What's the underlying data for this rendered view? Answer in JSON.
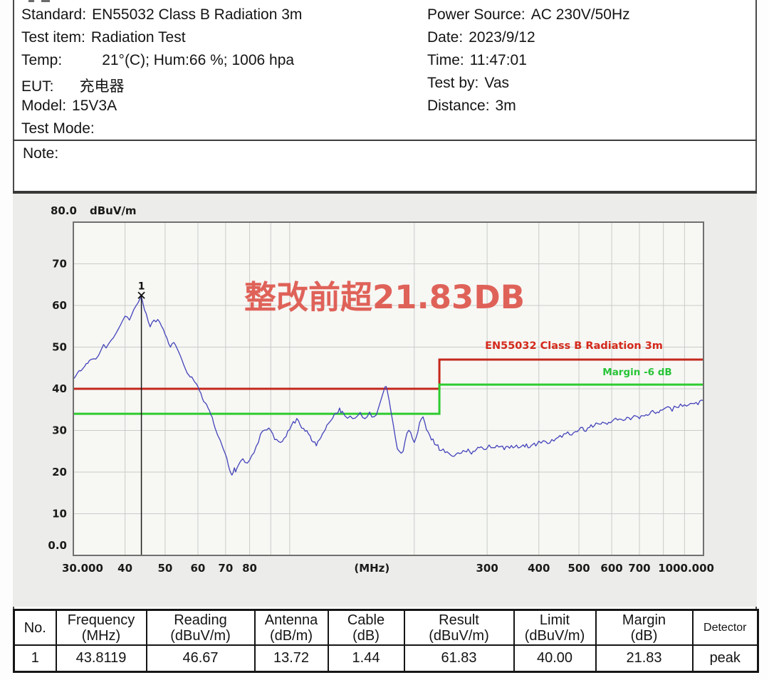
{
  "header": {
    "left": [
      {
        "label": "Standard:",
        "value": "EN55032 Class B Radiation 3m"
      },
      {
        "label": "Test item:",
        "value": "Radiation Test"
      },
      {
        "label": "Temp:",
        "value": "21°(C); Hum:66 %; 1006 hpa"
      },
      {
        "label": "EUT:",
        "value": "充电器"
      },
      {
        "label": "Model:",
        "value": "15V3A"
      },
      {
        "label": "Test Mode:",
        "value": ""
      }
    ],
    "right": [
      {
        "label": "Power Source:",
        "value": "AC 230V/50Hz"
      },
      {
        "label": "Date:",
        "value": "2023/9/12"
      },
      {
        "label": "Time:",
        "value": "11:47:01"
      },
      {
        "label": "Test by:",
        "value": "Vas"
      },
      {
        "label": "Distance:",
        "value": "3m"
      }
    ]
  },
  "note": {
    "label": "Note:"
  },
  "chart_data": {
    "type": "line",
    "x_axis": {
      "scale": "log",
      "min": 30,
      "max": 1000,
      "tick_labels": [
        {
          "f": 30,
          "label": "30.000"
        },
        {
          "f": 40,
          "label": "40"
        },
        {
          "f": 50,
          "label": "50"
        },
        {
          "f": 60,
          "label": "60"
        },
        {
          "f": 70,
          "label": "70"
        },
        {
          "f": 80,
          "label": "80"
        },
        {
          "f": 158,
          "label": "(MHz)",
          "unit": true
        },
        {
          "f": 300,
          "label": "300"
        },
        {
          "f": 400,
          "label": "400"
        },
        {
          "f": 500,
          "label": "500"
        },
        {
          "f": 600,
          "label": "600"
        },
        {
          "f": 700,
          "label": "700"
        },
        {
          "f": 1000,
          "label": "1000.000"
        }
      ],
      "grid_freqs": [
        40,
        50,
        60,
        70,
        80,
        90,
        100,
        200,
        300,
        400,
        500,
        600,
        700,
        800,
        900
      ]
    },
    "y_axis": {
      "min": 0,
      "max": 80,
      "unit_label": "dBuV/m",
      "top_label": "80.0",
      "bottom_label": "0.0",
      "ticks": [
        70,
        60,
        50,
        40,
        30,
        20,
        10
      ]
    },
    "annotation": {
      "text": "整改前超21.83DB",
      "color": "#de564c"
    },
    "limit_line": {
      "label": "EN55032 Class B Radiation 3m",
      "color": "#c3281c",
      "label_color": "#d5291c",
      "segments": [
        {
          "from": 30,
          "to": 230,
          "level": 40
        },
        {
          "from": 230,
          "to": 1000,
          "level": 47
        }
      ]
    },
    "margin_line": {
      "label": "Margin -6 dB",
      "color": "#2ecc2e",
      "label_color": "#27c437",
      "segments": [
        {
          "from": 30,
          "to": 230,
          "level": 34
        },
        {
          "from": 230,
          "to": 1000,
          "level": 41
        }
      ]
    },
    "marker": {
      "no": "1",
      "freq_mhz": 43.8119,
      "value_dbuvm": 61.83
    },
    "trace": {
      "name": "measurement-trace",
      "color": "#4343bb",
      "points": [
        [
          30,
          42.3
        ],
        [
          30.5,
          43.3
        ],
        [
          31,
          44.1
        ],
        [
          31.5,
          44.7
        ],
        [
          32,
          45.4
        ],
        [
          32.5,
          46.3
        ],
        [
          33,
          47.1
        ],
        [
          33.5,
          47.4
        ],
        [
          34,
          47.2
        ],
        [
          34.5,
          48.1
        ],
        [
          35,
          49.2
        ],
        [
          35.5,
          50.4
        ],
        [
          36,
          50.0
        ],
        [
          36.5,
          50.7
        ],
        [
          37,
          51.7
        ],
        [
          37.5,
          52.5
        ],
        [
          38,
          53.4
        ],
        [
          38.5,
          54.3
        ],
        [
          39,
          55.1
        ],
        [
          39.5,
          56.3
        ],
        [
          40,
          57.4
        ],
        [
          40.5,
          57.0
        ],
        [
          41,
          56.7
        ],
        [
          41.5,
          57.7
        ],
        [
          42,
          58.8
        ],
        [
          42.5,
          59.7
        ],
        [
          43,
          60.7
        ],
        [
          43.4,
          61.3
        ],
        [
          43.8,
          62.0
        ],
        [
          44.2,
          60.7
        ],
        [
          44.6,
          59.1
        ],
        [
          45,
          57.8
        ],
        [
          45.5,
          56.2
        ],
        [
          46,
          54.9
        ],
        [
          46.5,
          55.7
        ],
        [
          47,
          56.4
        ],
        [
          47.5,
          56.0
        ],
        [
          48,
          56.7
        ],
        [
          48.5,
          55.9
        ],
        [
          49,
          54.9
        ],
        [
          49.5,
          54.1
        ],
        [
          50,
          53.3
        ],
        [
          50.5,
          52.1
        ],
        [
          51,
          50.9
        ],
        [
          51.5,
          50.3
        ],
        [
          52,
          50.7
        ],
        [
          52.5,
          51.0
        ],
        [
          53,
          50.4
        ],
        [
          53.5,
          49.6
        ],
        [
          54,
          48.7
        ],
        [
          54.5,
          47.6
        ],
        [
          55,
          46.6
        ],
        [
          55.5,
          45.7
        ],
        [
          56,
          44.9
        ],
        [
          56.5,
          44.0
        ],
        [
          57,
          43.3
        ],
        [
          57.5,
          42.9
        ],
        [
          58,
          43.0
        ],
        [
          58.5,
          42.1
        ],
        [
          59,
          41.6
        ],
        [
          59.5,
          41.1
        ],
        [
          60,
          40.6
        ],
        [
          60.5,
          39.8
        ],
        [
          61,
          38.8
        ],
        [
          62,
          37.1
        ],
        [
          63,
          35.9
        ],
        [
          64,
          34.7
        ],
        [
          64.5,
          33.9
        ],
        [
          65,
          33.1
        ],
        [
          65.5,
          31.9
        ],
        [
          66,
          30.6
        ],
        [
          67,
          28.9
        ],
        [
          68,
          27.3
        ],
        [
          69,
          25.7
        ],
        [
          70,
          24.3
        ],
        [
          70.5,
          23.1
        ],
        [
          71,
          21.9
        ],
        [
          71.5,
          20.7
        ],
        [
          72,
          19.7
        ],
        [
          72.5,
          19.1
        ],
        [
          73,
          19.9
        ],
        [
          73.5,
          20.9
        ],
        [
          74,
          20.3
        ],
        [
          74.5,
          21.1
        ],
        [
          75,
          21.7
        ],
        [
          76,
          22.7
        ],
        [
          77,
          23.4
        ],
        [
          77.5,
          22.9
        ],
        [
          78,
          22.3
        ],
        [
          79,
          21.9
        ],
        [
          80,
          22.9
        ],
        [
          81,
          23.9
        ],
        [
          82,
          24.7
        ],
        [
          83,
          25.9
        ],
        [
          84,
          27.3
        ],
        [
          85,
          28.7
        ],
        [
          86,
          29.9
        ],
        [
          87,
          30.4
        ],
        [
          88,
          29.7
        ],
        [
          89,
          30.5
        ],
        [
          90,
          29.9
        ],
        [
          91,
          28.9
        ],
        [
          92,
          28.1
        ],
        [
          93,
          27.5
        ],
        [
          95,
          26.9
        ],
        [
          97,
          28.3
        ],
        [
          100,
          30.1
        ],
        [
          102,
          31.7
        ],
        [
          104,
          32.7
        ],
        [
          106,
          31.7
        ],
        [
          108,
          30.3
        ],
        [
          110,
          29.5
        ],
        [
          112,
          28.5
        ],
        [
          114,
          27.3
        ],
        [
          116,
          26.7
        ],
        [
          118,
          27.7
        ],
        [
          120,
          28.9
        ],
        [
          122,
          30.3
        ],
        [
          124,
          31.7
        ],
        [
          126,
          32.9
        ],
        [
          128,
          33.7
        ],
        [
          130,
          34.5
        ],
        [
          132,
          35.0
        ],
        [
          134,
          34.3
        ],
        [
          136,
          33.5
        ],
        [
          138,
          32.9
        ],
        [
          140,
          33.5
        ],
        [
          142,
          33.1
        ],
        [
          144,
          32.7
        ],
        [
          146,
          33.3
        ],
        [
          148,
          33.9
        ],
        [
          150,
          33.5
        ],
        [
          152,
          33.1
        ],
        [
          154,
          33.7
        ],
        [
          156,
          34.1
        ],
        [
          158,
          33.6
        ],
        [
          160,
          33.1
        ],
        [
          162,
          33.9
        ],
        [
          164,
          35.1
        ],
        [
          166,
          36.7
        ],
        [
          168,
          38.5
        ],
        [
          170,
          40.3
        ],
        [
          171,
          40.6
        ],
        [
          172,
          39.5
        ],
        [
          174,
          36.9
        ],
        [
          176,
          33.9
        ],
        [
          178,
          30.9
        ],
        [
          180,
          28.1
        ],
        [
          182,
          26.1
        ],
        [
          184,
          24.7
        ],
        [
          186,
          24.1
        ],
        [
          188,
          25.3
        ],
        [
          190,
          27.1
        ],
        [
          192,
          28.9
        ],
        [
          194,
          30.3
        ],
        [
          196,
          29.5
        ],
        [
          198,
          28.3
        ],
        [
          200,
          27.5
        ],
        [
          202,
          28.7
        ],
        [
          204,
          30.1
        ],
        [
          206,
          31.5
        ],
        [
          208,
          32.5
        ],
        [
          210,
          32.9
        ],
        [
          212,
          31.9
        ],
        [
          214,
          30.5
        ],
        [
          216,
          29.3
        ],
        [
          218,
          28.5
        ],
        [
          220,
          28.1
        ],
        [
          222,
          27.7
        ],
        [
          224,
          27.1
        ],
        [
          226,
          26.5
        ],
        [
          228,
          26.1
        ],
        [
          230,
          25.7
        ],
        [
          235,
          25.1
        ],
        [
          240,
          24.5
        ],
        [
          245,
          24.0
        ],
        [
          250,
          23.7
        ],
        [
          255,
          24.3
        ],
        [
          260,
          24.9
        ],
        [
          265,
          25.4
        ],
        [
          270,
          25.1
        ],
        [
          275,
          24.7
        ],
        [
          280,
          25.3
        ],
        [
          285,
          25.7
        ],
        [
          290,
          26.0
        ],
        [
          295,
          25.6
        ],
        [
          300,
          25.9
        ],
        [
          310,
          26.3
        ],
        [
          320,
          26.1
        ],
        [
          330,
          25.7
        ],
        [
          340,
          26.0
        ],
        [
          350,
          26.4
        ],
        [
          360,
          26.1
        ],
        [
          370,
          26.5
        ],
        [
          380,
          26.2
        ],
        [
          390,
          26.6
        ],
        [
          400,
          27.0
        ],
        [
          410,
          27.4
        ],
        [
          420,
          27.1
        ],
        [
          430,
          27.7
        ],
        [
          440,
          28.2
        ],
        [
          450,
          28.6
        ],
        [
          460,
          29.0
        ],
        [
          470,
          29.4
        ],
        [
          480,
          29.1
        ],
        [
          490,
          29.6
        ],
        [
          500,
          30.1
        ],
        [
          510,
          30.5
        ],
        [
          520,
          30.2
        ],
        [
          530,
          30.7
        ],
        [
          540,
          31.1
        ],
        [
          550,
          31.5
        ],
        [
          560,
          31.2
        ],
        [
          570,
          31.7
        ],
        [
          580,
          32.1
        ],
        [
          590,
          31.7
        ],
        [
          600,
          32.3
        ],
        [
          620,
          32.7
        ],
        [
          640,
          32.3
        ],
        [
          660,
          32.9
        ],
        [
          680,
          33.4
        ],
        [
          700,
          33.1
        ],
        [
          720,
          33.7
        ],
        [
          740,
          34.2
        ],
        [
          760,
          34.6
        ],
        [
          780,
          34.3
        ],
        [
          800,
          34.9
        ],
        [
          820,
          35.3
        ],
        [
          840,
          35.1
        ],
        [
          860,
          35.7
        ],
        [
          880,
          36.1
        ],
        [
          900,
          35.8
        ],
        [
          920,
          36.3
        ],
        [
          940,
          36.7
        ],
        [
          960,
          36.4
        ],
        [
          980,
          36.9
        ],
        [
          1000,
          37.3
        ]
      ]
    }
  },
  "table": {
    "columns": [
      {
        "name": "No.",
        "unit": ""
      },
      {
        "name": "Frequency",
        "unit": "(MHz)"
      },
      {
        "name": "Reading",
        "unit": "(dBuV/m)"
      },
      {
        "name": "Antenna",
        "unit": "(dB/m)"
      },
      {
        "name": "Cable",
        "unit": "(dB)"
      },
      {
        "name": "Result",
        "unit": "(dBuV/m)"
      },
      {
        "name": "Limit",
        "unit": "(dBuV/m)"
      },
      {
        "name": "Margin",
        "unit": "(dB)"
      },
      {
        "name": "Detector",
        "unit": ""
      }
    ],
    "rows": [
      [
        "1",
        "43.8119",
        "46.67",
        "13.72",
        "1.44",
        "61.83",
        "40.00",
        "21.83",
        "peak"
      ]
    ]
  }
}
